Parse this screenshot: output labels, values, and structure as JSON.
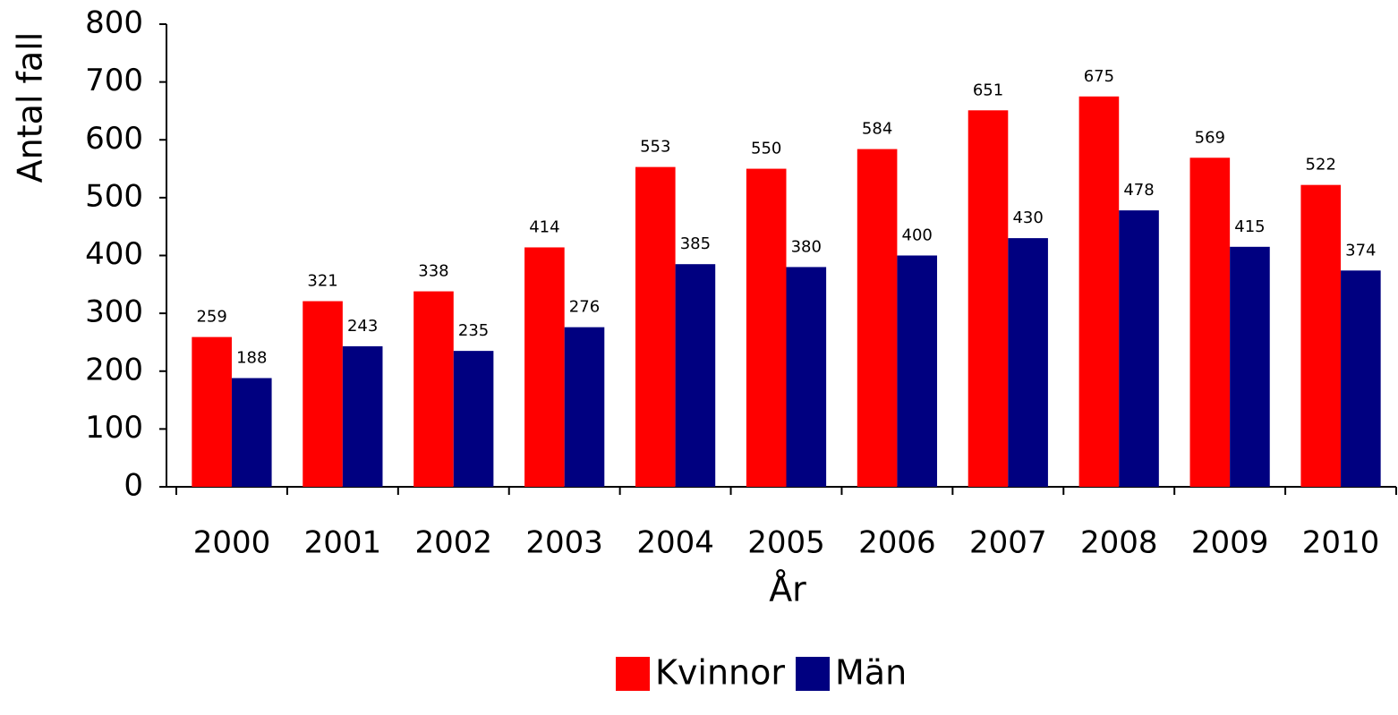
{
  "chart_data": {
    "type": "bar",
    "x_label": "År",
    "y_label": "Antal fall",
    "categories": [
      "2000",
      "2001",
      "2002",
      "2003",
      "2004",
      "2005",
      "2006",
      "2007",
      "2008",
      "2009",
      "2010"
    ],
    "series": [
      {
        "name": "Kvinnor",
        "color": "#ff0000",
        "values": [
          259,
          321,
          338,
          414,
          553,
          550,
          584,
          651,
          675,
          569,
          522
        ]
      },
      {
        "name": "Män",
        "color": "#000080",
        "values": [
          188,
          243,
          235,
          276,
          385,
          380,
          400,
          430,
          478,
          415,
          374
        ]
      }
    ],
    "ylim": [
      0,
      800
    ],
    "yticks": [
      0,
      100,
      200,
      300,
      400,
      500,
      600,
      700,
      800
    ],
    "legend": "bottom",
    "grid": false
  }
}
